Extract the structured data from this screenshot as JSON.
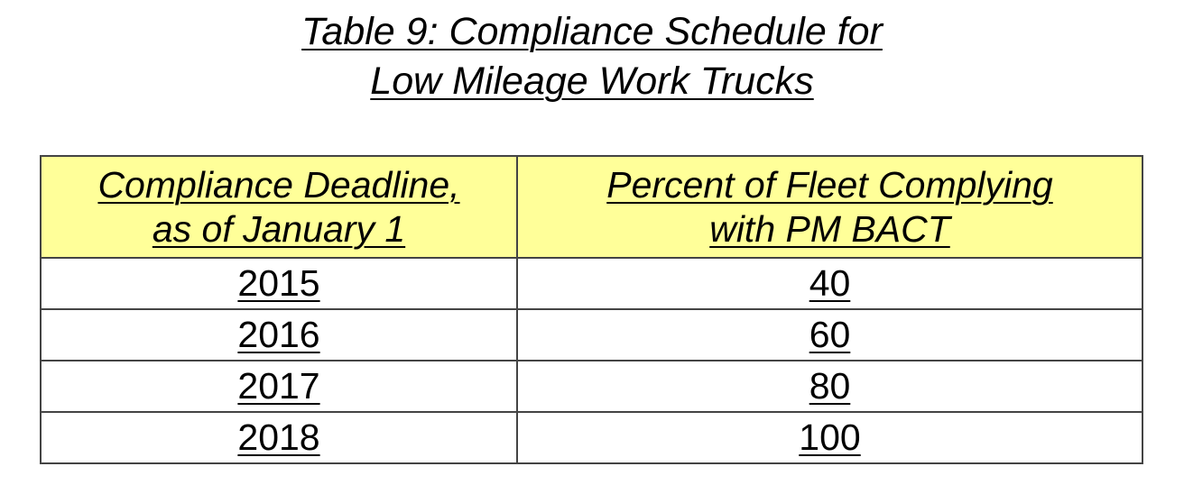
{
  "title": {
    "line1": "Table 9: Compliance Schedule for",
    "line2": "Low Mileage Work Trucks"
  },
  "colors": {
    "header_bg": "#ffff99",
    "border": "#444444"
  },
  "table": {
    "headers": [
      {
        "line1": "Compliance Deadline,",
        "line2": "as of January 1"
      },
      {
        "line1": "Percent of Fleet Complying",
        "line2": "with PM BACT"
      }
    ],
    "rows": [
      [
        "2015",
        "40"
      ],
      [
        "2016",
        "60"
      ],
      [
        "2017",
        "80"
      ],
      [
        "2018",
        "100"
      ]
    ]
  }
}
